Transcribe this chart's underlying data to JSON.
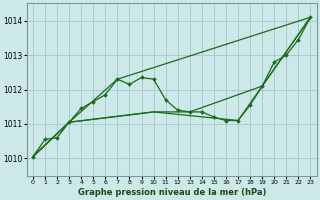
{
  "title": "Graphe pression niveau de la mer (hPa)",
  "bg_color": "#cce8e8",
  "grid_color": "#aacccc",
  "line_color": "#1a6b1a",
  "xlim": [
    -0.5,
    23.5
  ],
  "ylim": [
    1009.5,
    1014.5
  ],
  "xticks": [
    0,
    1,
    2,
    3,
    4,
    5,
    6,
    7,
    8,
    9,
    10,
    11,
    12,
    13,
    14,
    15,
    16,
    17,
    18,
    19,
    20,
    21,
    22,
    23
  ],
  "yticks": [
    1010,
    1011,
    1012,
    1013,
    1014
  ],
  "series_main": [
    0,
    1010.05,
    1,
    1010.55,
    2,
    1010.6,
    3,
    1011.05,
    4,
    1011.45,
    5,
    1011.65,
    6,
    1011.85,
    7,
    1012.3,
    8,
    1012.15,
    9,
    1012.35,
    10,
    1012.3,
    11,
    1011.7,
    12,
    1011.4,
    13,
    1011.35,
    14,
    1011.35,
    15,
    1011.2,
    16,
    1011.1,
    17,
    1011.1,
    18,
    1011.55,
    19,
    1012.1,
    20,
    1012.8,
    21,
    1013.0,
    22,
    1013.45,
    23,
    1014.1
  ],
  "series_upper": [
    0,
    1010.05,
    3,
    1011.05,
    7,
    1012.3,
    23,
    1014.1
  ],
  "series_lower1": [
    0,
    1010.05,
    3,
    1011.05,
    10,
    1011.35,
    13,
    1011.35,
    19,
    1012.1,
    23,
    1014.1
  ],
  "series_lower2": [
    0,
    1010.05,
    3,
    1011.05,
    10,
    1011.35,
    17,
    1011.1,
    19,
    1012.1,
    23,
    1014.1
  ]
}
